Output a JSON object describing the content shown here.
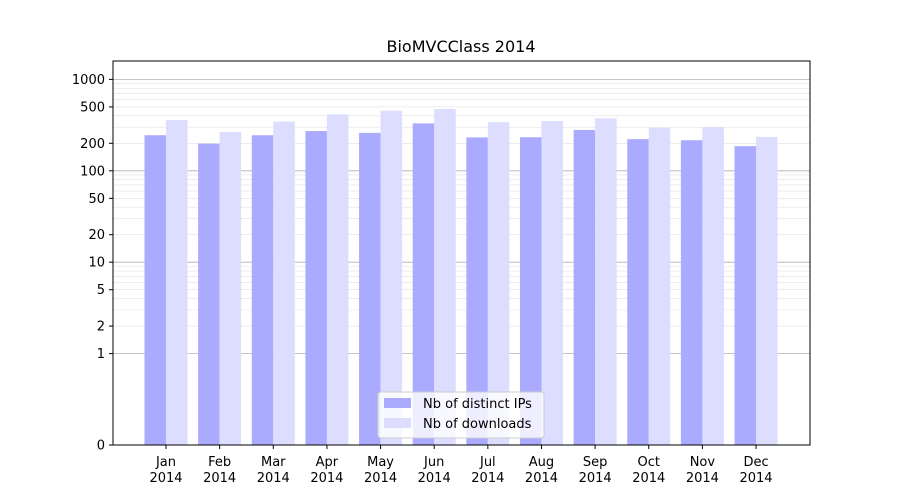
{
  "chart_data": {
    "type": "bar",
    "title": "BioMVCClass 2014",
    "xlabel": "",
    "ylabel": "",
    "y_scale": "symlog",
    "ylim": [
      0,
      1500
    ],
    "y_ticks": [
      0,
      1,
      2,
      5,
      10,
      20,
      50,
      100,
      200,
      500,
      1000
    ],
    "y_tick_labels": [
      "0",
      "1",
      "2",
      "5",
      "10",
      "20",
      "50",
      "100",
      "200",
      "500",
      "1000"
    ],
    "grid": true,
    "legend_position": "bottom-center",
    "categories": [
      {
        "month": "Jan",
        "year": "2014"
      },
      {
        "month": "Feb",
        "year": "2014"
      },
      {
        "month": "Mar",
        "year": "2014"
      },
      {
        "month": "Apr",
        "year": "2014"
      },
      {
        "month": "May",
        "year": "2014"
      },
      {
        "month": "Jun",
        "year": "2014"
      },
      {
        "month": "Jul",
        "year": "2014"
      },
      {
        "month": "Aug",
        "year": "2014"
      },
      {
        "month": "Sep",
        "year": "2014"
      },
      {
        "month": "Oct",
        "year": "2014"
      },
      {
        "month": "Nov",
        "year": "2014"
      },
      {
        "month": "Dec",
        "year": "2014"
      }
    ],
    "series": [
      {
        "name": "Nb of distinct IPs",
        "color": "#aaaaff",
        "values": [
          245,
          198,
          245,
          272,
          260,
          330,
          232,
          233,
          280,
          222,
          216,
          186
        ]
      },
      {
        "name": "Nb of downloads",
        "color": "#ddddff",
        "values": [
          360,
          265,
          345,
          415,
          455,
          475,
          340,
          350,
          375,
          295,
          300,
          235
        ]
      }
    ]
  }
}
